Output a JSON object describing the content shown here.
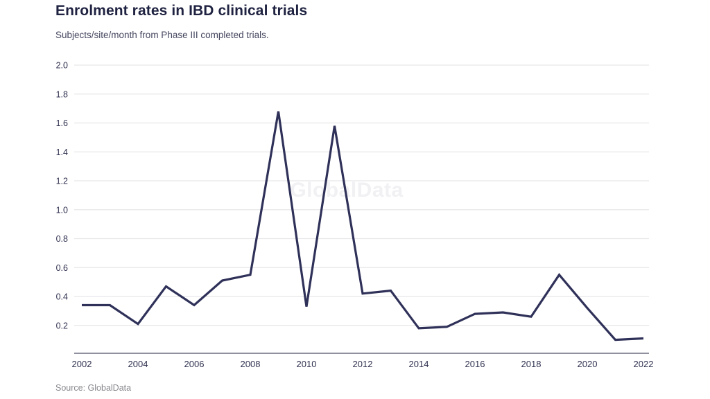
{
  "chart_data": {
    "type": "line",
    "title": "Enrolment rates in IBD clinical trials",
    "subtitle": "Subjects/site/month from Phase III completed trials.",
    "x": [
      2002,
      2003,
      2004,
      2005,
      2006,
      2007,
      2008,
      2009,
      2010,
      2011,
      2012,
      2013,
      2014,
      2015,
      2016,
      2017,
      2018,
      2019,
      2020,
      2021,
      2022
    ],
    "values": [
      0.34,
      0.34,
      0.21,
      0.47,
      0.34,
      0.51,
      0.55,
      1.68,
      0.33,
      1.58,
      0.42,
      0.44,
      0.18,
      0.19,
      0.28,
      0.29,
      0.26,
      0.55,
      0.32,
      0.1,
      0.11
    ],
    "xlabel": "",
    "ylabel": "",
    "ylim": [
      0,
      2.0
    ],
    "yticks": [
      0.2,
      0.4,
      0.6,
      0.8,
      1.0,
      1.2,
      1.4,
      1.6,
      1.8,
      2.0
    ],
    "ytick_labels": [
      "0.2",
      "0.4",
      "0.6",
      "0.8",
      "1.0",
      "1.2",
      "1.4",
      "1.6",
      "1.8",
      "2.0"
    ],
    "xticks": [
      2002,
      2004,
      2006,
      2008,
      2010,
      2012,
      2014,
      2016,
      2018,
      2020,
      2022
    ],
    "xtick_labels": [
      "2002",
      "2004",
      "2006",
      "2008",
      "2010",
      "2012",
      "2014",
      "2016",
      "2018",
      "2020",
      "2022"
    ],
    "grid": "horizontal",
    "legend": "none",
    "colors": {
      "line": "#2f3159",
      "gridline": "#e7e7ea",
      "axis_line": "#8f90a0",
      "tick_label": "#303250",
      "title": "#1f2240",
      "subtitle": "#44465e",
      "watermark_text": "#f1f1f4",
      "source_text": "#88888e"
    },
    "watermark": "GlobalData",
    "source": "Source: GlobalData"
  }
}
